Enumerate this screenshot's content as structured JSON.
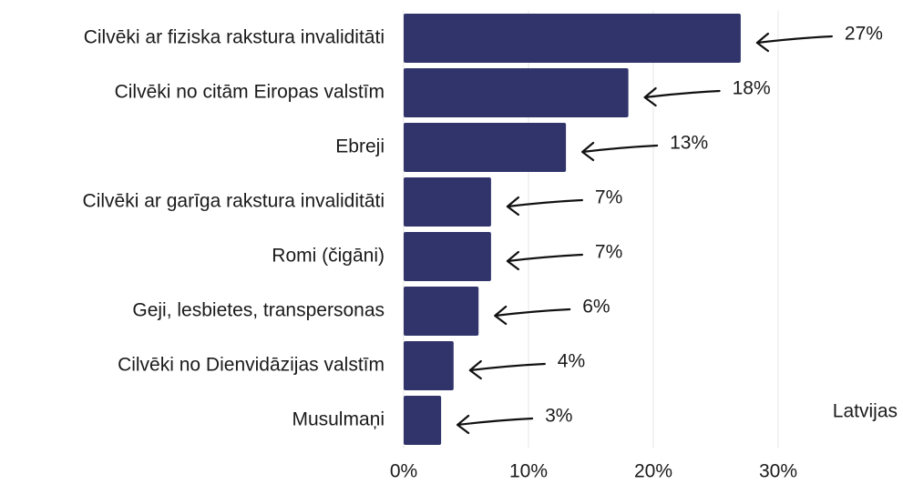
{
  "chart_data": {
    "type": "barh",
    "categories": [
      "Cilvēki ar fiziska rakstura invaliditāti",
      "Cilvēki no citām Eiropas valstīm",
      "Ebreji",
      "Cilvēki ar garīga rakstura invaliditāti",
      "Romi (čigāni)",
      "Geji, lesbietes, transpersonas",
      "Cilvēki no Dienvidāzijas valstīm",
      "Musulmaņi"
    ],
    "values": [
      27,
      18,
      13,
      7,
      7,
      6,
      4,
      3
    ],
    "value_labels": [
      "27%",
      "18%",
      "13%",
      "7%",
      "7%",
      "6%",
      "4%",
      "3%"
    ],
    "color": "#30346b",
    "xlim": [
      0,
      40
    ],
    "xticks": [
      {
        "value": 0,
        "label": "0%"
      },
      {
        "value": 10,
        "label": "10%"
      },
      {
        "value": 20,
        "label": "20%"
      },
      {
        "value": 30,
        "label": "30%"
      }
    ],
    "grid": true,
    "annotation": "Latvijas"
  }
}
